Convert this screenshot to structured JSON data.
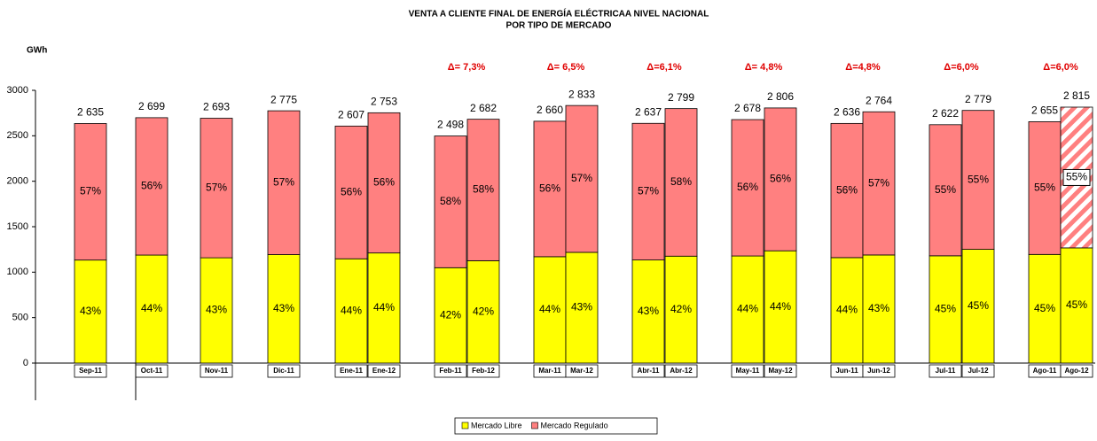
{
  "chart_data": {
    "type": "stacked_bar",
    "title": [
      "VENTA A  CLIENTE FINAL DE ENERGÍA ELÉCTRICAA NIVEL NACIONAL",
      "POR TIPO DE MERCADO"
    ],
    "y_label": "GWh",
    "categories": [
      "Sep-11",
      "Oct-11",
      "Nov-11",
      "Dic-11",
      "Ene-11",
      "Ene-12",
      "Feb-11",
      "Feb-12",
      "Mar-11",
      "Mar-12",
      "Abr-11",
      "Abr-12",
      "May-11",
      "May-12",
      "Jun-11",
      "Jun-12",
      "Jul-11",
      "Jul-12",
      "Ago-11",
      "Ago-12"
    ],
    "series": [
      {
        "name": "Mercado Libre",
        "color": "#ffff00",
        "values": [
          1133,
          1188,
          1158,
          1193,
          1147,
          1211,
          1049,
          1126,
          1170,
          1218,
          1134,
          1176,
          1178,
          1235,
          1160,
          1189,
          1180,
          1251,
          1195,
          1267
        ],
        "share_labels": [
          "43%",
          "44%",
          "43%",
          "43%",
          "44%",
          "44%",
          "42%",
          "42%",
          "44%",
          "43%",
          "43%",
          "42%",
          "44%",
          "44%",
          "44%",
          "43%",
          "45%",
          "45%",
          "45%",
          "45%"
        ]
      },
      {
        "name": "Mercado Regulado",
        "color": "#ff8080",
        "values": [
          1502,
          1511,
          1535,
          1582,
          1460,
          1542,
          1449,
          1556,
          1490,
          1615,
          1503,
          1623,
          1500,
          1571,
          1476,
          1575,
          1442,
          1528,
          1460,
          1548
        ],
        "share_labels": [
          "57%",
          "56%",
          "57%",
          "57%",
          "56%",
          "56%",
          "58%",
          "58%",
          "56%",
          "57%",
          "57%",
          "58%",
          "56%",
          "56%",
          "56%",
          "57%",
          "55%",
          "55%",
          "55%",
          "55%"
        ]
      }
    ],
    "total_labels": [
      "2 635",
      "2 699",
      "2 693",
      "2 775",
      "2 607",
      "2 753",
      "2 498",
      "2 682",
      "2 660",
      "2 833",
      "2 637",
      "2 799",
      "2 678",
      "2 806",
      "2 636",
      "2 764",
      "2 622",
      "2 779",
      "2 655",
      "2 815"
    ],
    "annotations": [
      "Δ= 7,3%",
      "Δ= 6,5%",
      "Δ=6,1%",
      "Δ= 4,8%",
      "Δ=4,8%",
      "Δ=6,0%",
      "Δ=6,0%"
    ],
    "ylim": [
      0,
      3000
    ],
    "yticks": [
      0,
      500,
      1000,
      1500,
      2000,
      2500,
      3000
    ],
    "legend": "bottom"
  }
}
